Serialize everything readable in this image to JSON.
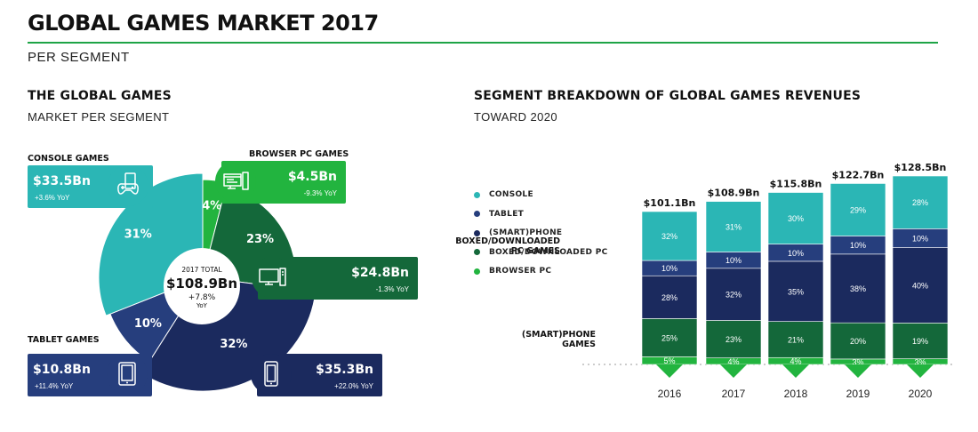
{
  "header": {
    "title": "GLOBAL GAMES MARKET 2017",
    "subtitle": "PER SEGMENT"
  },
  "colors": {
    "console": "#2bb6b5",
    "tablet": "#263e7d",
    "smartphone": "#1b2a5e",
    "boxed_pc": "#14683a",
    "browser_pc": "#22b43f",
    "accent": "#1ea446"
  },
  "icons": {
    "console": "gamepad-icon",
    "browser_pc": "browser-pc-icon",
    "boxed_pc": "monitor-icon",
    "tablet": "tablet-icon",
    "smartphone": "smartphone-icon"
  },
  "chart_data": [
    {
      "type": "pie",
      "title": "THE GLOBAL GAMES",
      "subtitle": "MARKET PER SEGMENT",
      "center": {
        "label": "2017 TOTAL",
        "value": "$108.9Bn",
        "change": "+7.8%",
        "change_label": "YoY"
      },
      "slices": [
        {
          "key": "browser_pc",
          "name": "BROWSER PC GAMES",
          "percent": 4,
          "percent_label": "4%",
          "value": "$4.5Bn",
          "yoy": "-9.3% YoY"
        },
        {
          "key": "boxed_pc",
          "name": "BOXED/DOWNLOADED PC GAMES",
          "name_lines": [
            "BOXED/DOWNLOADED",
            "PC GAMES"
          ],
          "percent": 23,
          "percent_label": "23%",
          "value": "$24.8Bn",
          "yoy": "-1.3% YoY"
        },
        {
          "key": "smartphone",
          "name": "(SMART)PHONE GAMES",
          "name_lines": [
            "(SMART)PHONE",
            "GAMES"
          ],
          "percent": 32,
          "percent_label": "32%",
          "value": "$35.3Bn",
          "yoy": "+22.0% YoY"
        },
        {
          "key": "tablet",
          "name": "TABLET GAMES",
          "percent": 10,
          "percent_label": "10%",
          "value": "$10.8Bn",
          "yoy": "+11.4% YoY"
        },
        {
          "key": "console",
          "name": "CONSOLE GAMES",
          "percent": 31,
          "percent_label": "31%",
          "value": "$33.5Bn",
          "yoy": "+3.6% YoY"
        }
      ]
    },
    {
      "type": "bar",
      "stacked": true,
      "normalized": true,
      "title": "SEGMENT BREAKDOWN OF GLOBAL GAMES REVENUES",
      "subtitle": "TOWARD 2020",
      "categories": [
        "2016",
        "2017",
        "2018",
        "2019",
        "2020"
      ],
      "totals": [
        "$101.1Bn",
        "$108.9Bn",
        "$115.8Bn",
        "$122.7Bn",
        "$128.5Bn"
      ],
      "total_values": [
        101.1,
        108.9,
        115.8,
        122.7,
        128.5
      ],
      "legend": [
        "CONSOLE",
        "TABLET",
        "(SMART)PHONE",
        "BOXED/DOWNLOADED PC",
        "BROWSER PC"
      ],
      "series": [
        {
          "key": "browser_pc",
          "name": "BROWSER PC",
          "values": [
            5,
            4,
            4,
            3,
            3
          ]
        },
        {
          "key": "boxed_pc",
          "name": "BOXED/DOWNLOADED PC",
          "values": [
            25,
            23,
            21,
            20,
            19
          ]
        },
        {
          "key": "smartphone",
          "name": "(SMART)PHONE",
          "values": [
            28,
            32,
            35,
            38,
            40
          ]
        },
        {
          "key": "tablet",
          "name": "TABLET",
          "values": [
            10,
            10,
            10,
            10,
            10
          ]
        },
        {
          "key": "console",
          "name": "CONSOLE",
          "values": [
            32,
            31,
            30,
            29,
            28
          ]
        }
      ]
    }
  ]
}
